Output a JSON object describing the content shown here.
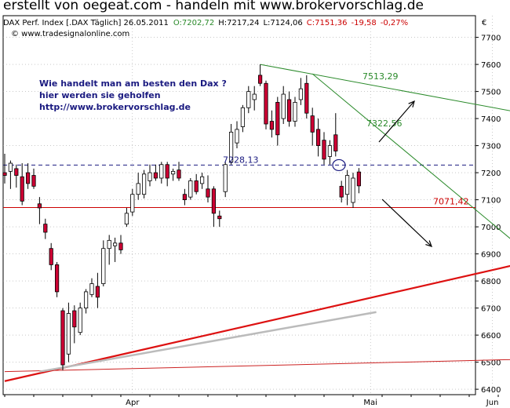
{
  "page": {
    "title": "erstellt von oegeat.com - handeln mit www.brokervorschlag.de"
  },
  "chart_data": {
    "type": "candlestick",
    "title": "DAX Perf. Index [.DAX Täglich] 26.05.2011",
    "source": "© www.tradesignalonline.com",
    "info_line": {
      "name": "DAX Perf. Index [.DAX Täglich] 26.05.2011",
      "open": "O:7202,72",
      "high": "H:7217,24",
      "low": "L:7124,06",
      "close": "C:7151,36",
      "change": "-19,58",
      "change_pct": "-0,27%"
    },
    "currency_symbol": "€",
    "y_axis": {
      "min": 6350,
      "max": 7780,
      "position": "right",
      "ticks": [
        6400,
        6500,
        6600,
        6700,
        6800,
        6900,
        7000,
        7100,
        7200,
        7300,
        7400,
        7500,
        7600,
        7700
      ]
    },
    "x_axis": {
      "labels": [
        "Apr",
        "Mai",
        "Jun"
      ],
      "label_index": [
        22,
        63,
        84
      ]
    },
    "grid": true,
    "candles": [
      {
        "o": 7200,
        "h": 7270,
        "l": 7160,
        "c": 7190
      },
      {
        "o": 7205,
        "h": 7245,
        "l": 7140,
        "c": 7235
      },
      {
        "o": 7215,
        "h": 7230,
        "l": 7145,
        "c": 7190
      },
      {
        "o": 7185,
        "h": 7235,
        "l": 7080,
        "c": 7095
      },
      {
        "o": 7200,
        "h": 7235,
        "l": 7140,
        "c": 7160
      },
      {
        "o": 7190,
        "h": 7215,
        "l": 7140,
        "c": 7150
      },
      {
        "o": 7085,
        "h": 7110,
        "l": 7010,
        "c": 7070
      },
      {
        "o": 7010,
        "h": 7030,
        "l": 6955,
        "c": 6980
      },
      {
        "o": 6920,
        "h": 6940,
        "l": 6840,
        "c": 6860
      },
      {
        "o": 6860,
        "h": 6870,
        "l": 6740,
        "c": 6760
      },
      {
        "o": 6690,
        "h": 6700,
        "l": 6470,
        "c": 6490
      },
      {
        "o": 6530,
        "h": 6720,
        "l": 6500,
        "c": 6680
      },
      {
        "o": 6690,
        "h": 6710,
        "l": 6570,
        "c": 6630
      },
      {
        "o": 6610,
        "h": 6720,
        "l": 6600,
        "c": 6700
      },
      {
        "o": 6700,
        "h": 6770,
        "l": 6680,
        "c": 6760
      },
      {
        "o": 6750,
        "h": 6810,
        "l": 6740,
        "c": 6790
      },
      {
        "o": 6780,
        "h": 6830,
        "l": 6700,
        "c": 6740
      },
      {
        "o": 6790,
        "h": 6950,
        "l": 6780,
        "c": 6920
      },
      {
        "o": 6920,
        "h": 6970,
        "l": 6860,
        "c": 6950
      },
      {
        "o": 6930,
        "h": 6960,
        "l": 6870,
        "c": 6940
      },
      {
        "o": 6940,
        "h": 6970,
        "l": 6900,
        "c": 6915
      },
      {
        "o": 7010,
        "h": 7070,
        "l": 7000,
        "c": 7050
      },
      {
        "o": 7055,
        "h": 7140,
        "l": 7040,
        "c": 7120
      },
      {
        "o": 7120,
        "h": 7200,
        "l": 7100,
        "c": 7160
      },
      {
        "o": 7120,
        "h": 7210,
        "l": 7105,
        "c": 7195
      },
      {
        "o": 7170,
        "h": 7230,
        "l": 7150,
        "c": 7200
      },
      {
        "o": 7200,
        "h": 7230,
        "l": 7170,
        "c": 7180
      },
      {
        "o": 7180,
        "h": 7240,
        "l": 7160,
        "c": 7230
      },
      {
        "o": 7230,
        "h": 7240,
        "l": 7150,
        "c": 7180
      },
      {
        "o": 7195,
        "h": 7215,
        "l": 7170,
        "c": 7205
      },
      {
        "o": 7210,
        "h": 7240,
        "l": 7170,
        "c": 7180
      },
      {
        "o": 7120,
        "h": 7140,
        "l": 7080,
        "c": 7100
      },
      {
        "o": 7110,
        "h": 7180,
        "l": 7100,
        "c": 7170
      },
      {
        "o": 7170,
        "h": 7195,
        "l": 7120,
        "c": 7130
      },
      {
        "o": 7160,
        "h": 7200,
        "l": 7140,
        "c": 7185
      },
      {
        "o": 7140,
        "h": 7190,
        "l": 7090,
        "c": 7110
      },
      {
        "o": 7140,
        "h": 7150,
        "l": 7000,
        "c": 7050
      },
      {
        "o": 7040,
        "h": 7060,
        "l": 7000,
        "c": 7030
      },
      {
        "o": 7130,
        "h": 7240,
        "l": 7110,
        "c": 7230
      },
      {
        "o": 7240,
        "h": 7380,
        "l": 7230,
        "c": 7350
      },
      {
        "o": 7310,
        "h": 7390,
        "l": 7290,
        "c": 7360
      },
      {
        "o": 7370,
        "h": 7450,
        "l": 7350,
        "c": 7440
      },
      {
        "o": 7440,
        "h": 7520,
        "l": 7420,
        "c": 7500
      },
      {
        "o": 7470,
        "h": 7520,
        "l": 7430,
        "c": 7490
      },
      {
        "o": 7560,
        "h": 7600,
        "l": 7520,
        "c": 7530
      },
      {
        "o": 7530,
        "h": 7540,
        "l": 7360,
        "c": 7380
      },
      {
        "o": 7390,
        "h": 7430,
        "l": 7330,
        "c": 7360
      },
      {
        "o": 7460,
        "h": 7480,
        "l": 7300,
        "c": 7340
      },
      {
        "o": 7400,
        "h": 7520,
        "l": 7380,
        "c": 7490
      },
      {
        "o": 7470,
        "h": 7500,
        "l": 7370,
        "c": 7390
      },
      {
        "o": 7390,
        "h": 7480,
        "l": 7370,
        "c": 7460
      },
      {
        "o": 7470,
        "h": 7550,
        "l": 7450,
        "c": 7510
      },
      {
        "o": 7530,
        "h": 7560,
        "l": 7400,
        "c": 7420
      },
      {
        "o": 7410,
        "h": 7440,
        "l": 7300,
        "c": 7350
      },
      {
        "o": 7360,
        "h": 7400,
        "l": 7260,
        "c": 7300
      },
      {
        "o": 7320,
        "h": 7350,
        "l": 7230,
        "c": 7250
      },
      {
        "o": 7260,
        "h": 7320,
        "l": 7230,
        "c": 7300
      },
      {
        "o": 7340,
        "h": 7420,
        "l": 7260,
        "c": 7280
      },
      {
        "o": 7150,
        "h": 7170,
        "l": 7090,
        "c": 7110
      },
      {
        "o": 7120,
        "h": 7210,
        "l": 7080,
        "c": 7190
      },
      {
        "o": 7090,
        "h": 7200,
        "l": 7070,
        "c": 7180
      },
      {
        "o": 7202.72,
        "h": 7217.24,
        "l": 7124.06,
        "c": 7151.36
      }
    ],
    "lines": [
      {
        "name": "resistance-7228",
        "label": "7228,13",
        "value": 7228.13,
        "style": "dashed",
        "color": "#1a1a80"
      },
      {
        "name": "support-7071",
        "label": "7071,42",
        "value": 7071.42,
        "style": "solid",
        "color": "#cc0000"
      },
      {
        "name": "trend-7513",
        "label": "7513,29",
        "from": [
          44,
          7600
        ],
        "to": [
          88,
          7425
        ],
        "color": "#2a8a2a"
      },
      {
        "name": "trend-7322",
        "label": "7322,56",
        "from": [
          53,
          7565
        ],
        "to": [
          88,
          6940
        ],
        "color": "#2a8a2a"
      },
      {
        "name": "uptrend-main",
        "from": [
          0,
          6430
        ],
        "to": [
          88,
          6860
        ],
        "color": "#dd1111"
      },
      {
        "name": "uptrend-low",
        "from": [
          0,
          6465
        ],
        "to": [
          88,
          6510
        ],
        "color": "#cc2222"
      },
      {
        "name": "ma-grey",
        "from": [
          6,
          6465
        ],
        "to": [
          64,
          6685
        ],
        "color": "#bbbbbb"
      }
    ],
    "annotations": {
      "note_lines": [
        "Wie handelt man am besten  den Dax ?",
        "hier werden sie geholfen",
        "http://www.brokervorschlag.de"
      ]
    },
    "colors": {
      "bull_fill": "#ffffff",
      "bear_fill": "#cc0033",
      "wick": "#000000",
      "grid": "#a8a8a8"
    }
  }
}
